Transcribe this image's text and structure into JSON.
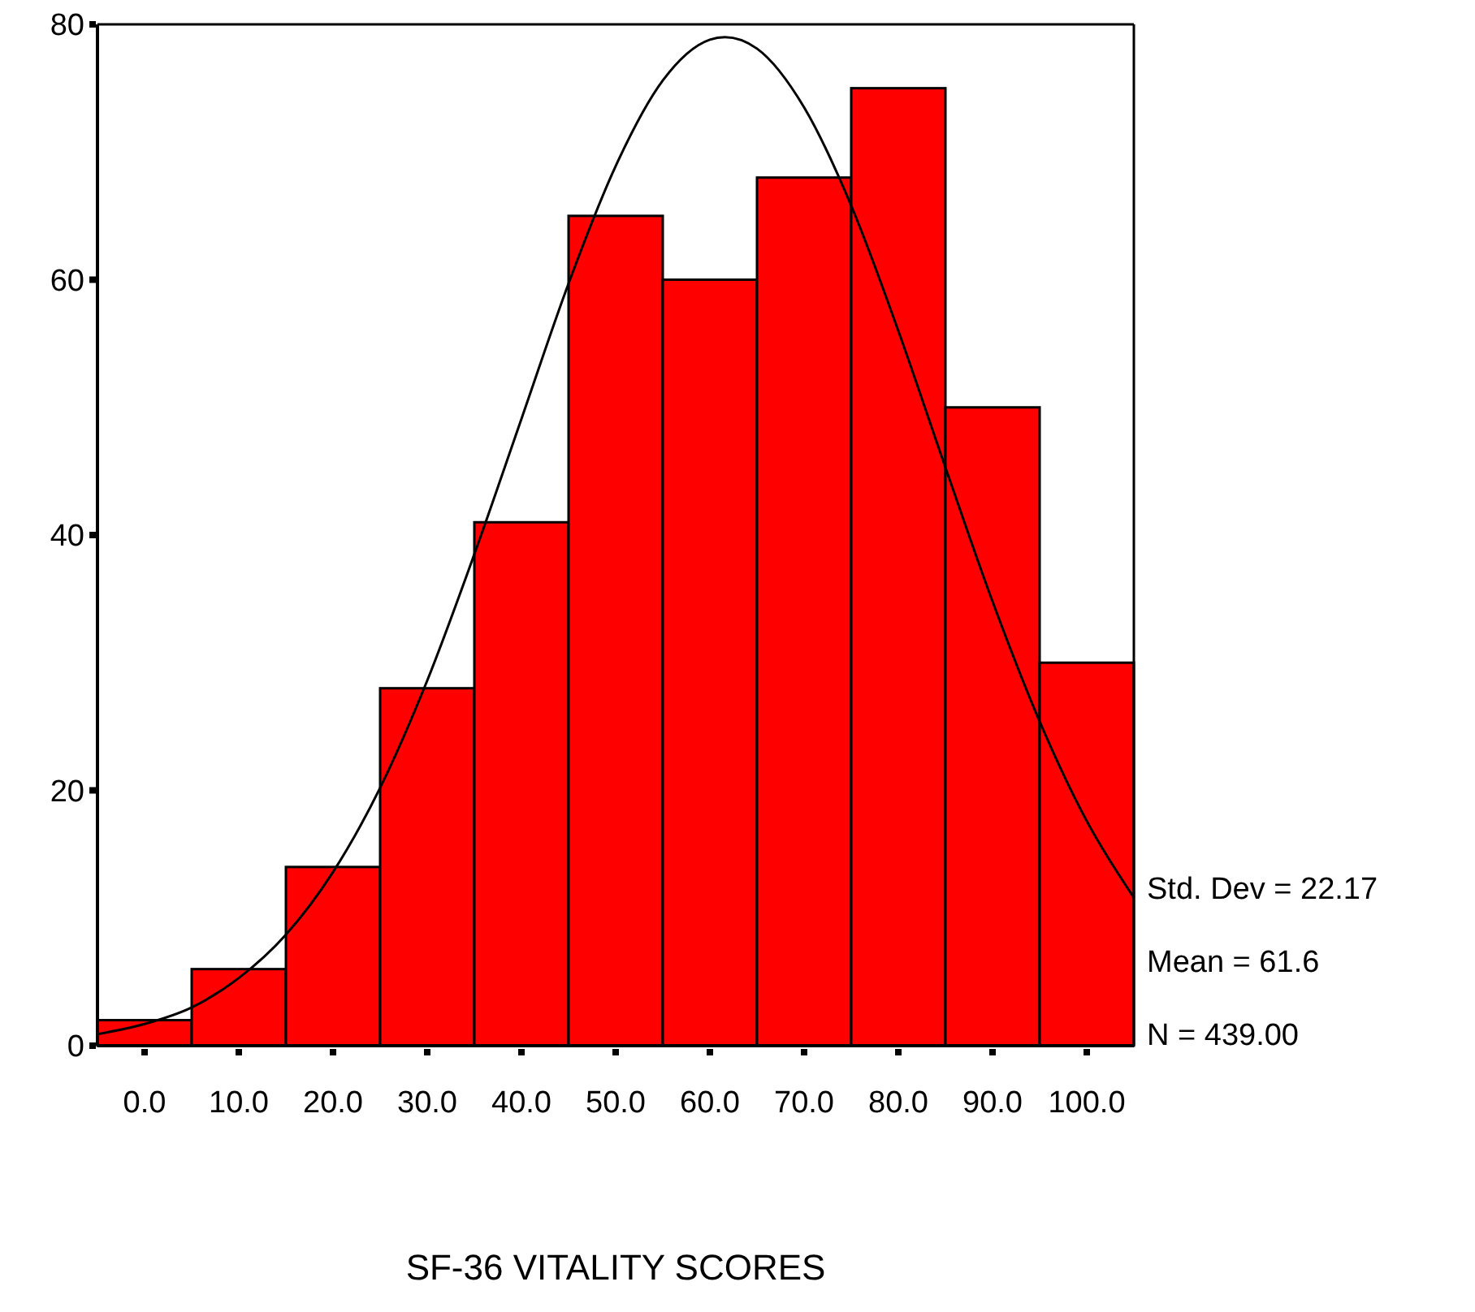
{
  "chart_data": {
    "type": "histogram",
    "xlabel": "SF-36 VITALITY SCORES",
    "bins": [
      -5,
      5,
      15,
      25,
      35,
      45,
      55,
      65,
      75,
      85,
      95,
      105
    ],
    "values": [
      2,
      6,
      14,
      28,
      41,
      65,
      60,
      68,
      75,
      50,
      30
    ],
    "color": "#ff0000",
    "xlim": [
      -5,
      105
    ],
    "xticks": [
      {
        "value": 0,
        "label": "0.0"
      },
      {
        "value": 10,
        "label": "10.0"
      },
      {
        "value": 20,
        "label": "20.0"
      },
      {
        "value": 30,
        "label": "30.0"
      },
      {
        "value": 40,
        "label": "40.0"
      },
      {
        "value": 50,
        "label": "50.0"
      },
      {
        "value": 60,
        "label": "60.0"
      },
      {
        "value": 70,
        "label": "70.0"
      },
      {
        "value": 80,
        "label": "80.0"
      },
      {
        "value": 90,
        "label": "90.0"
      },
      {
        "value": 100,
        "label": "100.0"
      }
    ],
    "ylim": [
      0,
      80
    ],
    "yticks": [
      0,
      20,
      40,
      60,
      80
    ],
    "grid": false,
    "series": [
      {
        "type": "line",
        "color": "#000000",
        "x": [
          -5,
          0,
          5,
          10,
          15,
          20,
          25,
          30,
          35,
          40,
          45,
          50,
          55,
          60,
          61.6,
          65,
          70,
          75,
          80,
          85,
          90,
          95,
          100,
          105
        ],
        "values": [
          0.9,
          1.7,
          3.0,
          5.3,
          8.7,
          13.6,
          20.2,
          28.6,
          38.5,
          49.1,
          59.7,
          68.9,
          75.6,
          78.8,
          79.0,
          78.1,
          73.5,
          65.8,
          56.0,
          45.3,
          34.8,
          25.4,
          17.6,
          11.6
        ]
      }
    ],
    "annotations": [
      "Std. Dev = 22.17",
      "Mean = 61.6",
      "N = 439.00"
    ]
  }
}
